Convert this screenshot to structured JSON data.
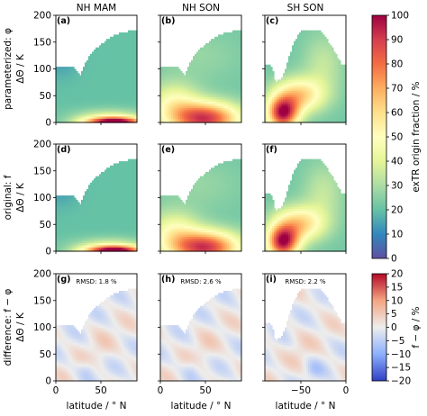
{
  "chart_data": {
    "type": "heatmap",
    "panels": [
      {
        "id": "a",
        "label": "(a)",
        "title": "NH MAM",
        "row": 0,
        "col": 0,
        "lat": [
          0,
          90
        ],
        "pattern": "nh_mam",
        "rmsd": ""
      },
      {
        "id": "b",
        "label": "(b)",
        "title": "NH SON",
        "row": 0,
        "col": 1,
        "lat": [
          0,
          90
        ],
        "pattern": "nh_son",
        "rmsd": ""
      },
      {
        "id": "c",
        "label": "(c)",
        "title": "SH SON",
        "row": 0,
        "col": 2,
        "lat": [
          -90,
          0
        ],
        "pattern": "sh_son",
        "rmsd": ""
      },
      {
        "id": "d",
        "label": "(d)",
        "title": "",
        "row": 1,
        "col": 0,
        "lat": [
          0,
          90
        ],
        "pattern": "nh_mam",
        "rmsd": ""
      },
      {
        "id": "e",
        "label": "(e)",
        "title": "",
        "row": 1,
        "col": 1,
        "lat": [
          0,
          90
        ],
        "pattern": "nh_son",
        "rmsd": ""
      },
      {
        "id": "f",
        "label": "(f)",
        "title": "",
        "row": 1,
        "col": 2,
        "lat": [
          -90,
          0
        ],
        "pattern": "sh_son",
        "rmsd": ""
      },
      {
        "id": "g",
        "label": "(g)",
        "title": "",
        "row": 2,
        "col": 0,
        "lat": [
          0,
          90
        ],
        "pattern": "diff",
        "rmsd": "RMSD: 1.8 %"
      },
      {
        "id": "h",
        "label": "(h)",
        "title": "",
        "row": 2,
        "col": 1,
        "lat": [
          0,
          90
        ],
        "pattern": "diff",
        "rmsd": "RMSD: 2.6 %"
      },
      {
        "id": "i",
        "label": "(i)",
        "title": "",
        "row": 2,
        "col": 2,
        "lat": [
          -90,
          0
        ],
        "pattern": "diff",
        "rmsd": "RMSD: 2.2 %"
      }
    ],
    "row_labels": [
      "parameterized: φ",
      "original: f",
      "difference: f − φ"
    ],
    "ylabel": "ΔΘ / K",
    "xlabel": "latitude / ° N",
    "ylim": [
      0,
      200
    ],
    "yticks": [
      "0",
      "50",
      "100",
      "150",
      "200"
    ],
    "xticks": [
      {
        "col": 0,
        "labels": [
          {
            "v": 0,
            "t": "0"
          },
          {
            "v": 50,
            "t": "50"
          }
        ]
      },
      {
        "col": 1,
        "labels": [
          {
            "v": 0,
            "t": "0"
          },
          {
            "v": 50,
            "t": "50"
          }
        ]
      },
      {
        "col": 2,
        "labels": [
          {
            "v": -50,
            "t": "−50"
          },
          {
            "v": 0,
            "t": "0"
          }
        ]
      }
    ],
    "colorbar_top": {
      "label": "exTR origin fraction / %",
      "range": [
        0,
        100
      ],
      "ticks": [
        "0",
        "10",
        "20",
        "30",
        "40",
        "50",
        "60",
        "70",
        "80",
        "90",
        "100"
      ]
    },
    "colorbar_bottom": {
      "label": "f − φ / %",
      "range": [
        -20,
        20
      ],
      "ticks": [
        "−20",
        "−15",
        "−10",
        "−5",
        "0",
        "5",
        "10",
        "15",
        "20"
      ]
    },
    "tropopause_K": {
      "nh": [
        [
          0,
          105
        ],
        [
          20,
          104
        ],
        [
          27,
          88
        ],
        [
          33,
          112
        ],
        [
          40,
          132
        ],
        [
          50,
          145
        ],
        [
          60,
          158
        ],
        [
          70,
          166
        ],
        [
          80,
          170
        ],
        [
          90,
          172
        ]
      ],
      "sh": [
        [
          -90,
          108
        ],
        [
          -85,
          108
        ],
        [
          -82,
          104
        ],
        [
          -78,
          74
        ],
        [
          -70,
          85
        ],
        [
          -64,
          118
        ],
        [
          -57,
          153
        ],
        [
          -50,
          170
        ],
        [
          -40,
          172
        ],
        [
          -30,
          172
        ],
        [
          -22,
          157
        ],
        [
          -12,
          130
        ],
        [
          -5,
          108
        ],
        [
          0,
          106
        ]
      ]
    }
  }
}
